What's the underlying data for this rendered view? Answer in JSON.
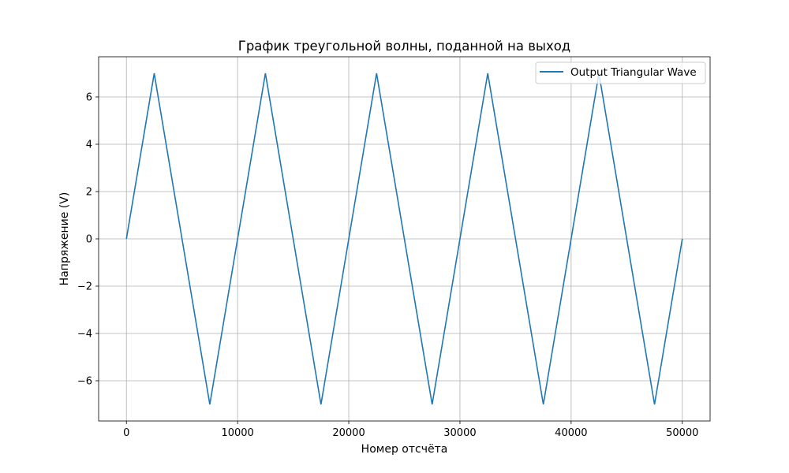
{
  "chart_data": {
    "type": "line",
    "title": "График треугольной волны, поданной на выход",
    "xlabel": "Номер отсчёта",
    "ylabel": "Напряжение (V)",
    "xlim": [
      -2500,
      52500
    ],
    "ylim": [
      -7.7,
      7.7
    ],
    "xticks": [
      0,
      10000,
      20000,
      30000,
      40000,
      50000
    ],
    "yticks": [
      -6,
      -4,
      -2,
      0,
      2,
      4,
      6
    ],
    "ytick_labels": [
      "−6",
      "−4",
      "−2",
      "0",
      "2",
      "4",
      "6"
    ],
    "grid": true,
    "legend_position": "top-right",
    "series": [
      {
        "name": "Output Triangular Wave",
        "color": "#1f77b4",
        "x": [
          0,
          2500,
          7500,
          12500,
          17500,
          22500,
          27500,
          32500,
          37500,
          42500,
          47500,
          50000
        ],
        "y": [
          0,
          7,
          -7,
          7,
          -7,
          7,
          -7,
          7,
          -7,
          7,
          -7,
          0
        ]
      }
    ]
  }
}
